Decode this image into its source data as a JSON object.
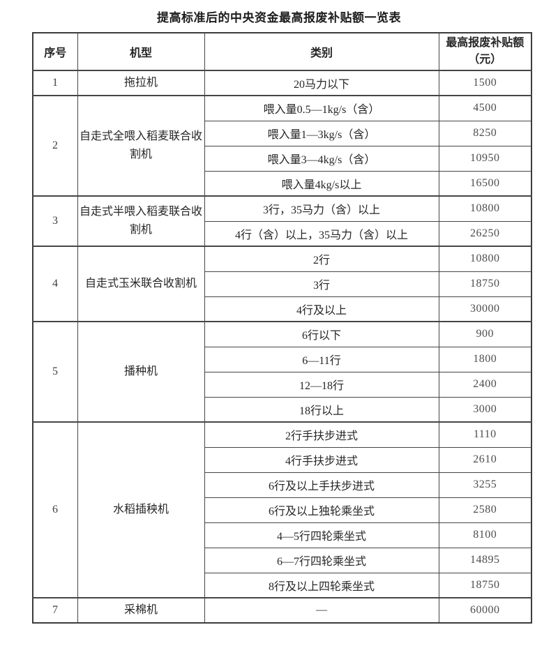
{
  "title": "提高标准后的中央资金最高报废补贴额一览表",
  "colors": {
    "background": "#ffffff",
    "border": "#3c3c3c",
    "text": "#262626",
    "amount_text": "#4d4d4d"
  },
  "table": {
    "headers": [
      "序号",
      "机型",
      "类别",
      "最高报废补贴额（元）"
    ],
    "groups": [
      {
        "no": "1",
        "machine": "拖拉机",
        "rows": [
          {
            "category": "20马力以下",
            "amount": "1500"
          }
        ]
      },
      {
        "no": "2",
        "machine": "自走式全喂入稻麦联合收割机",
        "rows": [
          {
            "category": "喂入量0.5—1kg/s（含）",
            "amount": "4500"
          },
          {
            "category": "喂入量1—3kg/s（含）",
            "amount": "8250"
          },
          {
            "category": "喂入量3—4kg/s（含）",
            "amount": "10950"
          },
          {
            "category": "喂入量4kg/s以上",
            "amount": "16500"
          }
        ]
      },
      {
        "no": "3",
        "machine": "自走式半喂入稻麦联合收割机",
        "rows": [
          {
            "category": "3行，35马力（含）以上",
            "amount": "10800"
          },
          {
            "category": "4行（含）以上，35马力（含）以上",
            "amount": "26250"
          }
        ]
      },
      {
        "no": "4",
        "machine": "自走式玉米联合收割机",
        "rows": [
          {
            "category": "2行",
            "amount": "10800"
          },
          {
            "category": "3行",
            "amount": "18750"
          },
          {
            "category": "4行及以上",
            "amount": "30000"
          }
        ]
      },
      {
        "no": "5",
        "machine": "播种机",
        "rows": [
          {
            "category": "6行以下",
            "amount": "900"
          },
          {
            "category": "6—11行",
            "amount": "1800"
          },
          {
            "category": "12—18行",
            "amount": "2400"
          },
          {
            "category": "18行以上",
            "amount": "3000"
          }
        ]
      },
      {
        "no": "6",
        "machine": "水稻插秧机",
        "rows": [
          {
            "category": "2行手扶步进式",
            "amount": "1110"
          },
          {
            "category": "4行手扶步进式",
            "amount": "2610"
          },
          {
            "category": "6行及以上手扶步进式",
            "amount": "3255"
          },
          {
            "category": "6行及以上独轮乘坐式",
            "amount": "2580"
          },
          {
            "category": "4—5行四轮乘坐式",
            "amount": "8100"
          },
          {
            "category": "6—7行四轮乘坐式",
            "amount": "14895"
          },
          {
            "category": "8行及以上四轮乘坐式",
            "amount": "18750"
          }
        ]
      },
      {
        "no": "7",
        "machine": "采棉机",
        "rows": [
          {
            "category": "—",
            "amount": "60000"
          }
        ]
      }
    ]
  }
}
